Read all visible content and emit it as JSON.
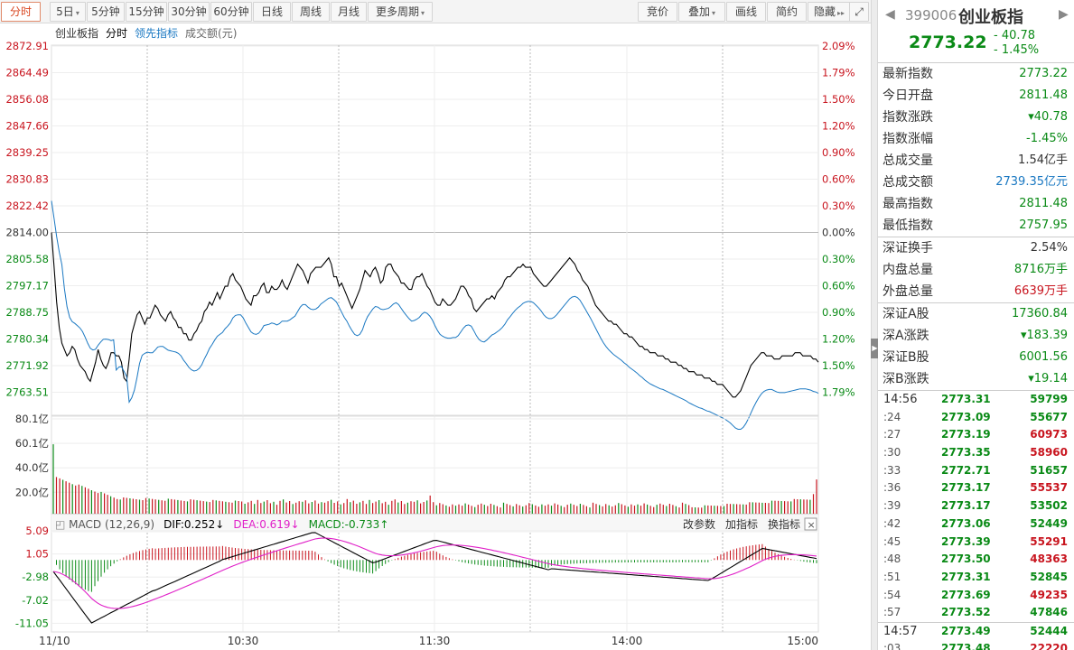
{
  "toolbar": {
    "left": [
      {
        "id": "tab-fenshi",
        "label": "分时",
        "active": true
      },
      {
        "id": "tab-5day",
        "label": "5日",
        "dropdown": true
      },
      {
        "id": "tab-5min",
        "label": "5分钟"
      },
      {
        "id": "tab-15min",
        "label": "15分钟"
      },
      {
        "id": "tab-30min",
        "label": "30分钟"
      },
      {
        "id": "tab-60min",
        "label": "60分钟"
      },
      {
        "id": "tab-daily",
        "label": "日线"
      },
      {
        "id": "tab-weekly",
        "label": "周线"
      },
      {
        "id": "tab-monthly",
        "label": "月线"
      },
      {
        "id": "tab-more-periods",
        "label": "更多周期",
        "dropdown": true
      }
    ],
    "right": [
      {
        "id": "btn-auction",
        "label": "竞价"
      },
      {
        "id": "btn-overlay",
        "label": "叠加",
        "dropdown": true
      },
      {
        "id": "btn-draw",
        "label": "画线"
      },
      {
        "id": "btn-brief",
        "label": "简约"
      },
      {
        "id": "btn-hide",
        "label": "隐藏"
      }
    ],
    "hide_glyph": "▸▸",
    "fullscreen_glyph": "⤢"
  },
  "chart_data": [
    {
      "type": "line",
      "panel": "price",
      "legend": [
        "创业板指",
        "分时",
        "领先指标",
        "成交额(元)"
      ],
      "y_ticks": [
        "2872.91",
        "2864.49",
        "2856.08",
        "2847.66",
        "2839.25",
        "2830.83",
        "2822.42",
        "2814.00",
        "2805.58",
        "2797.17",
        "2788.75",
        "2780.34",
        "2771.92",
        "2763.51"
      ],
      "pct_ticks": [
        "2.09%",
        "1.79%",
        "1.50%",
        "1.20%",
        "0.90%",
        "0.60%",
        "0.30%",
        "0.00%",
        "0.30%",
        "0.60%",
        "0.90%",
        "1.20%",
        "1.50%",
        "1.79%"
      ],
      "ylim": [
        2759.3,
        2872.91
      ],
      "x_labels": [
        "11/10",
        "10:30",
        "11:30",
        "14:00",
        "15:00"
      ],
      "series": [
        {
          "name": "分时",
          "color": "#000000",
          "values": [
            2814,
            2801,
            2778,
            2770,
            2776,
            2773,
            2778,
            2775,
            2779,
            2774,
            2776,
            2771,
            2768,
            2766,
            2782,
            2788,
            2785,
            2787,
            2791,
            2788,
            2785,
            2790,
            2787,
            2785,
            2789,
            2786,
            2783,
            2781,
            2785,
            2790,
            2793,
            2795,
            2797,
            2795,
            2800,
            2798,
            2796,
            2792,
            2794,
            2797,
            2796,
            2798,
            2802,
            2801,
            2799,
            2803,
            2805,
            2801,
            2797,
            2792,
            2796,
            2803,
            2802,
            2797,
            2805,
            2801,
            2796,
            2799,
            2800,
            2793,
            2795,
            2791,
            2792,
            2798,
            2793,
            2789,
            2795,
            2794,
            2797,
            2799,
            2804,
            2803,
            2800,
            2796,
            2801,
            2804,
            2806,
            2802,
            2799,
            2790,
            2787,
            2785,
            2782,
            2781,
            2778,
            2777,
            2775,
            2776,
            2774,
            2777,
            2776,
            2770,
            2773,
            2771,
            2769,
            2767,
            2769,
            2771,
            2768,
            2770,
            2772,
            2776,
            2775,
            2777,
            2776,
            2773,
            2775,
            2778,
            2776,
            2779,
            2778,
            2777,
            2776,
            2775,
            2777,
            2776
          ],
          "dense": [
            2814,
            2803,
            2792,
            2784,
            2779,
            2777,
            2775,
            2776,
            2778,
            2777,
            2774,
            2772,
            2771,
            2770,
            2768,
            2767,
            2770,
            2773,
            2777,
            2774,
            2772,
            2771,
            2773,
            2776,
            2776,
            2775,
            2775,
            2773,
            2768,
            2767,
            2774,
            2782,
            2785,
            2788,
            2789,
            2787,
            2785,
            2787,
            2787,
            2789,
            2791,
            2790,
            2788,
            2787,
            2786,
            2788,
            2789,
            2787,
            2786,
            2784,
            2784,
            2782,
            2782,
            2780,
            2780,
            2782,
            2783,
            2785,
            2786,
            2789,
            2790,
            2792,
            2791,
            2793,
            2795,
            2793,
            2795,
            2797,
            2797,
            2800,
            2801,
            2799,
            2798,
            2797,
            2795,
            2793,
            2792,
            2791,
            2794,
            2794,
            2795,
            2797,
            2798,
            2795,
            2795,
            2797,
            2796,
            2796,
            2797,
            2799,
            2797,
            2796,
            2798,
            2800,
            2802,
            2804,
            2803,
            2802,
            2800,
            2798,
            2801,
            2802,
            2803,
            2803,
            2803,
            2804,
            2805,
            2806,
            2804,
            2800,
            2800,
            2797,
            2798,
            2796,
            2794,
            2792,
            2790,
            2792,
            2794,
            2796,
            2799,
            2802,
            2801,
            2800,
            2802,
            2803,
            2801,
            2798,
            2799,
            2803,
            2804,
            2804,
            2802,
            2801,
            2800,
            2798,
            2798,
            2797,
            2796,
            2796,
            2799,
            2800,
            2800,
            2801,
            2799,
            2797,
            2796,
            2794,
            2792,
            2791,
            2791,
            2793,
            2792,
            2791,
            2791,
            2792,
            2793,
            2795,
            2797,
            2797,
            2796,
            2794,
            2793,
            2790,
            2789,
            2790,
            2791,
            2792,
            2793,
            2793,
            2794,
            2793,
            2795,
            2796,
            2797,
            2799,
            2800,
            2800,
            2801,
            2802,
            2803,
            2803,
            2804,
            2803,
            2803,
            2803,
            2801,
            2800,
            2799,
            2798,
            2797,
            2797,
            2798,
            2799,
            2800,
            2801,
            2802,
            2803,
            2804,
            2805,
            2806,
            2805,
            2804,
            2802,
            2801,
            2799,
            2798,
            2797,
            2795,
            2793,
            2791,
            2790,
            2789,
            2788,
            2787,
            2786,
            2786,
            2785,
            2785,
            2784,
            2783,
            2782,
            2782,
            2781,
            2781,
            2780,
            2779,
            2778,
            2778,
            2777,
            2777,
            2776,
            2776,
            2776,
            2775,
            2775,
            2775,
            2774,
            2774,
            2773,
            2773,
            2773,
            2772,
            2772,
            2771,
            2771,
            2770,
            2770,
            2770,
            2769,
            2769,
            2769,
            2768,
            2768,
            2768,
            2767,
            2767,
            2766,
            2766,
            2766,
            2765,
            2764,
            2763,
            2762,
            2762,
            2763,
            2764,
            2766,
            2768,
            2770,
            2772,
            2773,
            2774,
            2775,
            2776,
            2776,
            2775,
            2775,
            2775,
            2774,
            2774,
            2774,
            2775,
            2775,
            2775,
            2775,
            2775,
            2776,
            2776,
            2776,
            2775,
            2775,
            2775,
            2775,
            2774,
            2774,
            2773
          ]
        },
        {
          "name": "领先指标",
          "color": "#1a78c2",
          "values": []
        }
      ]
    },
    {
      "type": "bar",
      "panel": "volume",
      "y_ticks": [
        "80.1亿",
        "60.1亿",
        "40.0亿",
        "20.0亿"
      ],
      "ylim": [
        0,
        80.1
      ]
    },
    {
      "type": "bar",
      "panel": "macd",
      "header": {
        "name": "MACD",
        "params": "(12,26,9)",
        "dif": "DIF:0.252",
        "dea": "DEA:0.619",
        "macd": "MACD:-0.733",
        "dif_arrow": "↓",
        "dea_arrow": "↓",
        "macd_arrow": "↑"
      },
      "buttons": [
        "改参数",
        "加指标",
        "换指标"
      ],
      "y_ticks": [
        "5.09",
        "1.05",
        "-2.98",
        "-7.02",
        "-11.05"
      ],
      "ylim": [
        -11.05,
        5.09
      ]
    }
  ],
  "sidebar": {
    "code": "399006",
    "name": "创业板指",
    "price": "2773.22",
    "change": "- 40.78",
    "change_pct": "- 1.45%",
    "stats": [
      {
        "label": "最新指数",
        "value": "2773.22",
        "color": "green"
      },
      {
        "label": "今日开盘",
        "value": "2811.48",
        "color": "green"
      },
      {
        "label": "指数涨跌",
        "value": "▾40.78",
        "color": "green"
      },
      {
        "label": "指数涨幅",
        "value": "-1.45%",
        "color": "green"
      },
      {
        "label": "总成交量",
        "value": "1.54亿手",
        "color": "dark"
      },
      {
        "label": "总成交额",
        "value": "2739.35亿元",
        "color": "blue"
      },
      {
        "label": "最高指数",
        "value": "2811.48",
        "color": "green"
      },
      {
        "label": "最低指数",
        "value": "2757.95",
        "color": "green"
      }
    ],
    "stats2": [
      {
        "label": "深证换手",
        "value": "2.54%",
        "color": "dark"
      },
      {
        "label": "内盘总量",
        "value": "8716万手",
        "color": "green"
      },
      {
        "label": "外盘总量",
        "value": "6639万手",
        "color": "red"
      }
    ],
    "stats3": [
      {
        "label": "深证A股",
        "value": "17360.84",
        "color": "green"
      },
      {
        "label": "深A涨跌",
        "value": "▾183.39",
        "color": "green"
      },
      {
        "label": "深证B股",
        "value": "6001.56",
        "color": "green"
      },
      {
        "label": "深B涨跌",
        "value": "▾19.14",
        "color": "green"
      }
    ],
    "ticks": [
      {
        "time": "14:56",
        "price": "2773.31",
        "vol": "59799",
        "vcolor": "green",
        "big": true
      },
      {
        "time": ":24",
        "price": "2773.09",
        "vol": "55677",
        "vcolor": "green"
      },
      {
        "time": ":27",
        "price": "2773.19",
        "vol": "60973",
        "vcolor": "red"
      },
      {
        "time": ":30",
        "price": "2773.35",
        "vol": "58960",
        "vcolor": "red"
      },
      {
        "time": ":33",
        "price": "2772.71",
        "vol": "51657",
        "vcolor": "green"
      },
      {
        "time": ":36",
        "price": "2773.17",
        "vol": "55537",
        "vcolor": "red"
      },
      {
        "time": ":39",
        "price": "2773.17",
        "vol": "53502",
        "vcolor": "green"
      },
      {
        "time": ":42",
        "price": "2773.06",
        "vol": "52449",
        "vcolor": "green"
      },
      {
        "time": ":45",
        "price": "2773.39",
        "vol": "55291",
        "vcolor": "red"
      },
      {
        "time": ":48",
        "price": "2773.50",
        "vol": "48363",
        "vcolor": "red"
      },
      {
        "time": ":51",
        "price": "2773.31",
        "vol": "52845",
        "vcolor": "green"
      },
      {
        "time": ":54",
        "price": "2773.69",
        "vol": "49235",
        "vcolor": "red"
      },
      {
        "time": ":57",
        "price": "2773.52",
        "vol": "47846",
        "vcolor": "green"
      },
      {
        "time": "14:57",
        "price": "2773.49",
        "vol": "52444",
        "vcolor": "green",
        "big": true,
        "sep": true
      },
      {
        "time": ":03",
        "price": "2773.48",
        "vol": "22220",
        "vcolor": "red"
      }
    ]
  },
  "colors": {
    "up": "#c8141e",
    "down": "#0a8a16",
    "dif": "#000000",
    "dea": "#e020c8",
    "lead": "#1a78c2"
  }
}
